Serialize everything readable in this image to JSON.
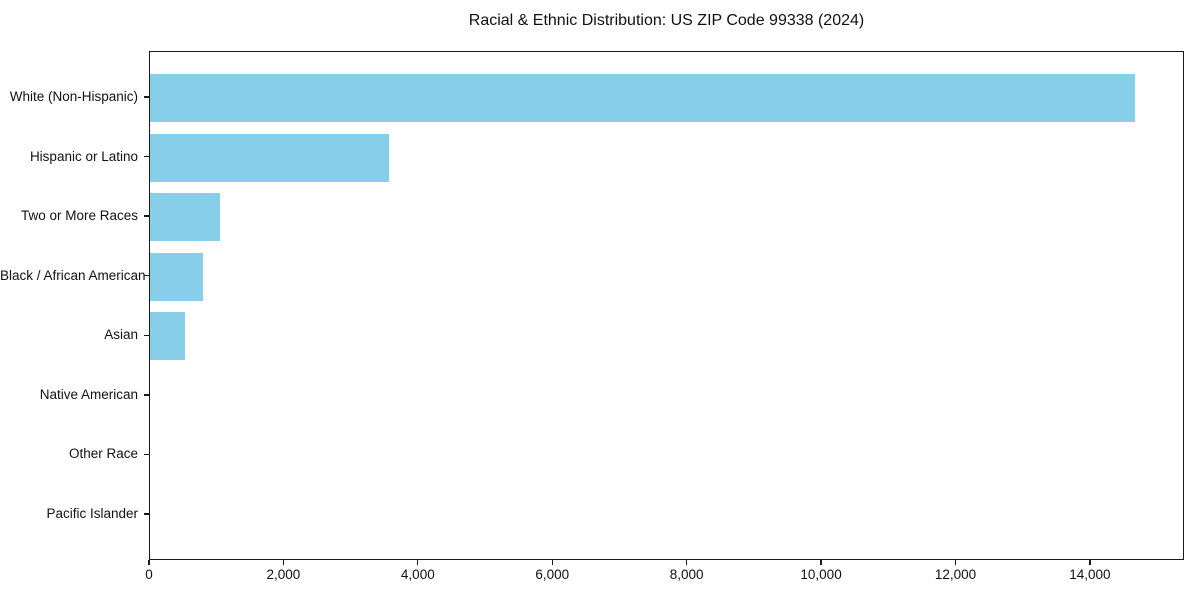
{
  "title": "Racial & Ethnic Distribution: US ZIP Code 99338 (2024)",
  "chart_data": {
    "type": "bar",
    "orientation": "horizontal",
    "title": "Racial & Ethnic Distribution: US ZIP Code 99338 (2024)",
    "categories": [
      "White (Non-Hispanic)",
      "Hispanic or Latino",
      "Two or More Races",
      "Black / African American",
      "Asian",
      "Native American",
      "Other Race",
      "Pacific Islander"
    ],
    "values": [
      14660,
      3550,
      1040,
      790,
      520,
      0,
      0,
      0
    ],
    "xlabel": "",
    "ylabel": "",
    "xlim": [
      0,
      15400
    ],
    "xticks": [
      0,
      2000,
      4000,
      6000,
      8000,
      10000,
      12000,
      14000
    ],
    "xtick_labels": [
      "0",
      "2,000",
      "4,000",
      "6,000",
      "8,000",
      "10,000",
      "12,000",
      "14,000"
    ],
    "bar_color": "#87CEEB",
    "background_color": "#ffffff",
    "grid": false,
    "legend": null
  }
}
